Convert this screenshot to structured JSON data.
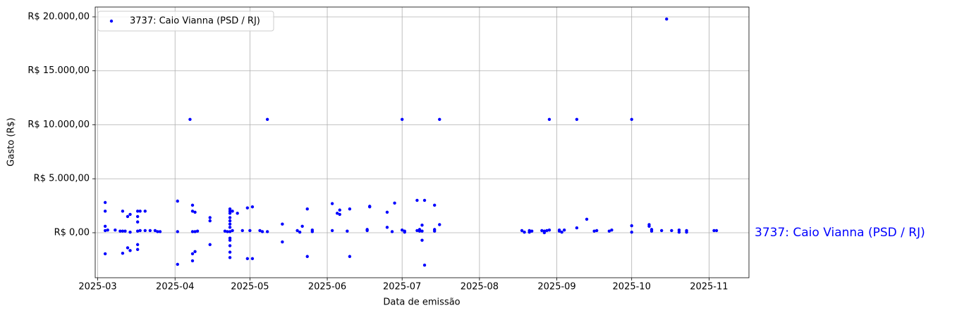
{
  "chart_data": {
    "type": "scatter",
    "xlabel": "Data de emissão",
    "ylabel": "Gasto (R$)",
    "annotation": "3737: Caio Vianna (PSD / RJ)",
    "annotation_color": "blue",
    "grid": true,
    "legend": "upper left",
    "xlim": [
      "2025-02-28",
      "2025-11-17"
    ],
    "xticks": [
      {
        "value": "2025-03-01",
        "label": "2025-03"
      },
      {
        "value": "2025-04-01",
        "label": "2025-04"
      },
      {
        "value": "2025-05-01",
        "label": "2025-05"
      },
      {
        "value": "2025-06-01",
        "label": "2025-06"
      },
      {
        "value": "2025-07-01",
        "label": "2025-07"
      },
      {
        "value": "2025-08-01",
        "label": "2025-08"
      },
      {
        "value": "2025-09-01",
        "label": "2025-09"
      },
      {
        "value": "2025-10-01",
        "label": "2025-10"
      },
      {
        "value": "2025-11-01",
        "label": "2025-11"
      }
    ],
    "ylim": [
      -4170,
      20910
    ],
    "yticks": [
      {
        "value": 0,
        "label": "R$ 0,00"
      },
      {
        "value": 5000,
        "label": "R$ 5.000,00"
      },
      {
        "value": 10000,
        "label": "R$ 10.000,00"
      },
      {
        "value": 15000,
        "label": "R$ 15.000,00"
      },
      {
        "value": 20000,
        "label": "R$ 20.000,00"
      }
    ],
    "x": [
      "2025-03-04",
      "2025-03-04",
      "2025-03-04",
      "2025-03-04",
      "2025-03-04",
      "2025-03-05",
      "2025-03-08",
      "2025-03-10",
      "2025-03-11",
      "2025-03-11",
      "2025-03-11",
      "2025-03-12",
      "2025-03-13",
      "2025-03-13",
      "2025-03-14",
      "2025-03-14",
      "2025-03-14",
      "2025-03-17",
      "2025-03-17",
      "2025-03-17",
      "2025-03-17",
      "2025-03-17",
      "2025-03-17",
      "2025-03-18",
      "2025-03-18",
      "2025-03-20",
      "2025-03-20",
      "2025-03-22",
      "2025-03-24",
      "2025-03-25",
      "2025-03-26",
      "2025-04-02",
      "2025-04-02",
      "2025-04-02",
      "2025-04-07",
      "2025-04-08",
      "2025-04-08",
      "2025-04-08",
      "2025-04-08",
      "2025-04-08",
      "2025-04-09",
      "2025-04-09",
      "2025-04-09",
      "2025-04-10",
      "2025-04-15",
      "2025-04-15",
      "2025-04-15",
      "2025-04-21",
      "2025-04-22",
      "2025-04-23",
      "2025-04-23",
      "2025-04-23",
      "2025-04-23",
      "2025-04-23",
      "2025-04-23",
      "2025-04-23",
      "2025-04-23",
      "2025-04-23",
      "2025-04-23",
      "2025-04-23",
      "2025-04-23",
      "2025-04-23",
      "2025-04-24",
      "2025-04-24",
      "2025-04-26",
      "2025-04-28",
      "2025-04-30",
      "2025-04-30",
      "2025-05-01",
      "2025-05-02",
      "2025-05-02",
      "2025-05-05",
      "2025-05-06",
      "2025-05-08",
      "2025-05-08",
      "2025-05-14",
      "2025-05-14",
      "2025-05-20",
      "2025-05-21",
      "2025-05-22",
      "2025-05-24",
      "2025-05-24",
      "2025-05-26",
      "2025-05-26",
      "2025-06-03",
      "2025-06-03",
      "2025-06-05",
      "2025-06-06",
      "2025-06-06",
      "2025-06-09",
      "2025-06-10",
      "2025-06-10",
      "2025-06-17",
      "2025-06-17",
      "2025-06-18",
      "2025-06-18",
      "2025-06-25",
      "2025-06-25",
      "2025-06-27",
      "2025-06-28",
      "2025-07-01",
      "2025-07-01",
      "2025-07-02",
      "2025-07-02",
      "2025-07-07",
      "2025-07-07",
      "2025-07-08",
      "2025-07-08",
      "2025-07-09",
      "2025-07-09",
      "2025-07-09",
      "2025-07-10",
      "2025-07-10",
      "2025-07-14",
      "2025-07-14",
      "2025-07-14",
      "2025-07-16",
      "2025-07-16",
      "2025-08-18",
      "2025-08-19",
      "2025-08-21",
      "2025-08-21",
      "2025-08-22",
      "2025-08-26",
      "2025-08-27",
      "2025-08-27",
      "2025-08-28",
      "2025-08-29",
      "2025-08-29",
      "2025-09-02",
      "2025-09-02",
      "2025-09-03",
      "2025-09-04",
      "2025-09-09",
      "2025-09-09",
      "2025-09-13",
      "2025-09-16",
      "2025-09-17",
      "2025-09-22",
      "2025-09-23",
      "2025-10-01",
      "2025-10-01",
      "2025-10-01",
      "2025-10-08",
      "2025-10-08",
      "2025-10-09",
      "2025-10-09",
      "2025-10-13",
      "2025-10-15",
      "2025-10-17",
      "2025-10-20",
      "2025-10-20",
      "2025-10-23",
      "2025-10-23",
      "2025-11-03",
      "2025-11-04"
    ],
    "series": [
      {
        "name": "3737: Caio Vianna (PSD / RJ)",
        "color": "blue",
        "values": [
          2800,
          2000,
          600,
          -1950,
          200,
          250,
          250,
          150,
          2000,
          -1900,
          150,
          150,
          1500,
          -1400,
          1700,
          -1650,
          50,
          2000,
          1500,
          1000,
          -1550,
          -1100,
          150,
          2000,
          200,
          2000,
          200,
          200,
          200,
          100,
          100,
          -2930,
          2930,
          100,
          10500,
          2550,
          2000,
          -1950,
          -2600,
          100,
          1900,
          -1750,
          100,
          150,
          1400,
          1100,
          -1100,
          150,
          100,
          500,
          800,
          1100,
          1400,
          1800,
          2000,
          2200,
          -500,
          -700,
          -1200,
          -1800,
          -2300,
          100,
          2000,
          200,
          1800,
          200,
          2300,
          -2400,
          200,
          2400,
          -2400,
          200,
          100,
          10500,
          100,
          800,
          -850,
          200,
          50,
          600,
          2200,
          -2200,
          100,
          250,
          2700,
          200,
          1800,
          2100,
          1700,
          150,
          2200,
          -2200,
          200,
          300,
          2450,
          2400,
          1900,
          500,
          100,
          2750,
          10500,
          250,
          150,
          50,
          3000,
          200,
          150,
          300,
          150,
          700,
          -700,
          3000,
          -3000,
          2550,
          300,
          150,
          10500,
          750,
          200,
          50,
          200,
          50,
          150,
          200,
          150,
          0,
          200,
          10500,
          250,
          150,
          250,
          50,
          250,
          10500,
          450,
          1250,
          150,
          200,
          150,
          250,
          10500,
          650,
          50,
          750,
          600,
          300,
          150,
          200,
          19800,
          200,
          250,
          50,
          200,
          50,
          200,
          200
        ]
      }
    ]
  }
}
